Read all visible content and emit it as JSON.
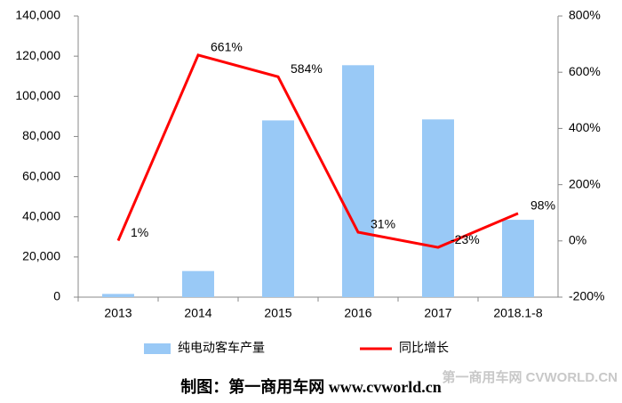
{
  "chart_data": {
    "type": "bar_line",
    "categories": [
      "2013",
      "2014",
      "2015",
      "2016",
      "2017",
      "2018.1-8"
    ],
    "series": [
      {
        "name": "纯电动客车产量",
        "color": "#99c9f6",
        "type": "bar",
        "values": [
          1600,
          13000,
          88000,
          115500,
          88500,
          38500
        ]
      },
      {
        "name": "同比增长",
        "color": "#ff0000",
        "type": "line",
        "axis": "y2",
        "values": [
          1,
          661,
          584,
          31,
          -23,
          98
        ],
        "value_labels": [
          "1%",
          "661%",
          "584%",
          "31%",
          "-23%",
          "98%"
        ]
      }
    ],
    "ylim": [
      0,
      140000
    ],
    "yticks": [
      0,
      {
        "value": 20000,
        "label": "20,000"
      },
      {
        "value": 40000,
        "label": "40,000"
      },
      {
        "value": 60000,
        "label": "60,000"
      },
      {
        "value": 80000,
        "label": "80,000"
      },
      {
        "value": 100000,
        "label": "100,000"
      },
      {
        "value": 120000,
        "label": "120,000"
      },
      {
        "value": 140000,
        "label": "140,000"
      }
    ],
    "y2lim": [
      -200,
      800
    ],
    "y2ticks": [
      {
        "value": -200,
        "label": "-200%"
      },
      {
        "value": 0,
        "label": "0%"
      },
      {
        "value": 200,
        "label": "200%"
      },
      {
        "value": 400,
        "label": "400%"
      },
      {
        "value": 600,
        "label": "600%"
      },
      {
        "value": 800,
        "label": "800%"
      }
    ],
    "legend": "bottom",
    "source": "制图：第一商用车网 www.cvworld.cn",
    "watermark": "第一商用车网 CVWORLD.CN"
  }
}
